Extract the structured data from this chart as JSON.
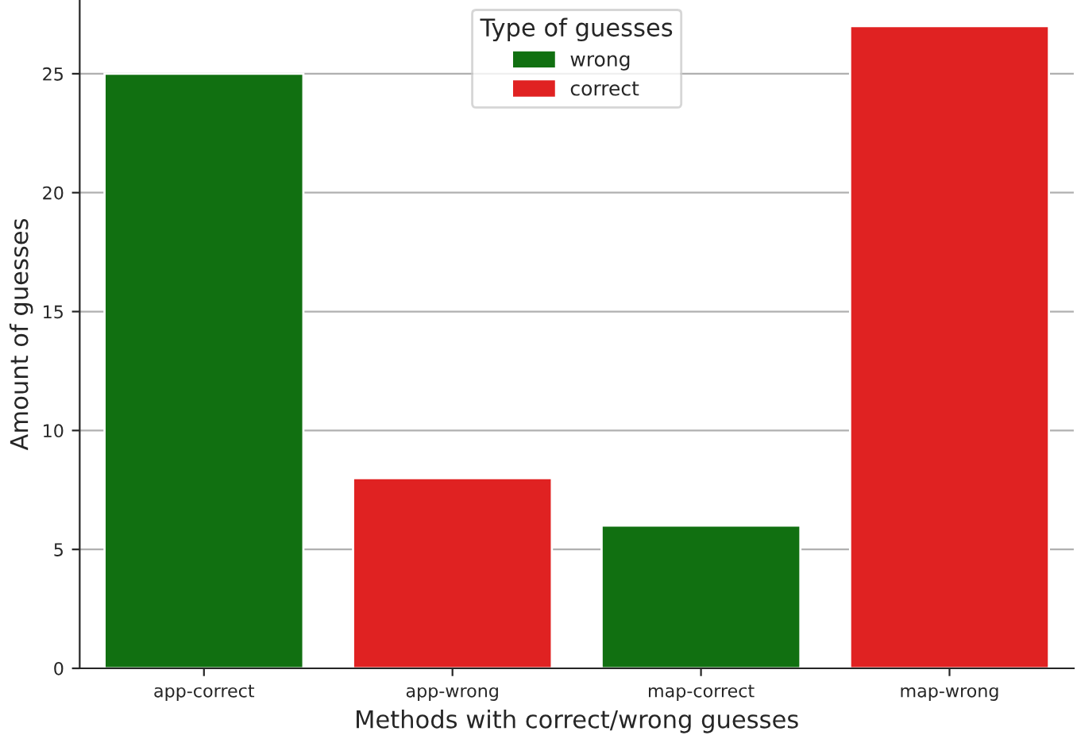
{
  "chart_data": {
    "type": "bar",
    "xlabel": "Methods with correct/wrong guesses",
    "ylabel": "Amount of guesses",
    "legend_title": "Type of guesses",
    "categories": [
      "app-correct",
      "app-wrong",
      "map-correct",
      "map-wrong"
    ],
    "series": [
      {
        "name": "wrong",
        "color": "#117011",
        "values": [
          25,
          null,
          6,
          null
        ]
      },
      {
        "name": "correct",
        "color": "#e02222",
        "values": [
          null,
          8,
          null,
          27
        ]
      }
    ],
    "ylim": [
      0,
      28.1
    ],
    "yticks": [
      0,
      5,
      10,
      15,
      20,
      25
    ],
    "grid": "y",
    "legend": "top"
  }
}
